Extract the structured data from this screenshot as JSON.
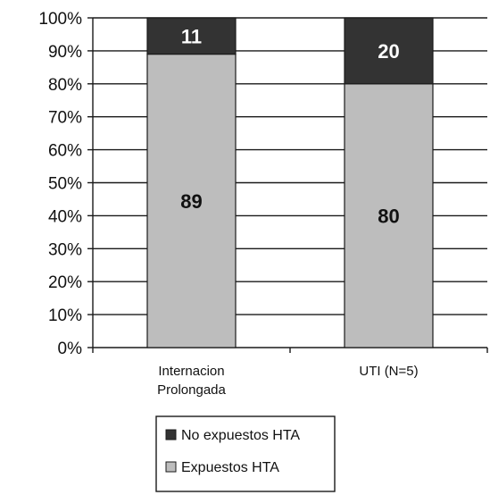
{
  "chart_data": {
    "type": "bar",
    "stacked": true,
    "percent": true,
    "categories": [
      [
        "Internacion",
        "Prolongada"
      ],
      [
        "UTI (N=5)"
      ]
    ],
    "series": [
      {
        "name": "Expuestos HTA",
        "values": [
          89,
          80
        ],
        "color": "#bdbdbd"
      },
      {
        "name": "No expuestos HTA",
        "values": [
          11,
          20
        ],
        "color": "#333333"
      }
    ],
    "ylim": [
      0,
      100
    ],
    "yticks": [
      "0%",
      "10%",
      "20%",
      "30%",
      "40%",
      "50%",
      "60%",
      "70%",
      "80%",
      "90%",
      "100%"
    ],
    "grid": true,
    "legend_position": "bottom",
    "legend_order": [
      "No expuestos HTA",
      "Expuestos HTA"
    ],
    "title": "",
    "xlabel": "",
    "ylabel": ""
  }
}
